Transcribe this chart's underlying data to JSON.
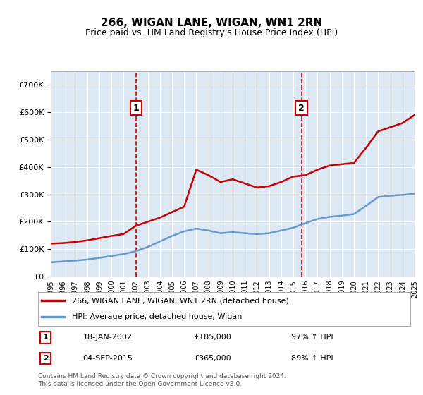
{
  "title": "266, WIGAN LANE, WIGAN, WN1 2RN",
  "subtitle": "Price paid vs. HM Land Registry's House Price Index (HPI)",
  "property_label": "266, WIGAN LANE, WIGAN, WN1 2RN (detached house)",
  "hpi_label": "HPI: Average price, detached house, Wigan",
  "annotation1_label": "1",
  "annotation1_date": "18-JAN-2002",
  "annotation1_price": "£185,000",
  "annotation1_hpi": "97% ↑ HPI",
  "annotation2_label": "2",
  "annotation2_date": "04-SEP-2015",
  "annotation2_price": "£365,000",
  "annotation2_hpi": "89% ↑ HPI",
  "footer": "Contains HM Land Registry data © Crown copyright and database right 2024.\nThis data is licensed under the Open Government Licence v3.0.",
  "property_color": "#cc0000",
  "hpi_color": "#6699cc",
  "background_color": "#dce9f5",
  "plot_bg_color": "#dce9f5",
  "annotation_box_color": "#cc0000",
  "vline_color": "#cc0000",
  "ylim": [
    0,
    750000
  ],
  "yticks": [
    0,
    100000,
    200000,
    300000,
    400000,
    500000,
    600000,
    700000
  ],
  "hpi_years": [
    1995,
    1996,
    1997,
    1998,
    1999,
    2000,
    2001,
    2002,
    2003,
    2004,
    2005,
    2006,
    2007,
    2008,
    2009,
    2010,
    2011,
    2012,
    2013,
    2014,
    2015,
    2016,
    2017,
    2018,
    2019,
    2020,
    2021,
    2022,
    2023,
    2024,
    2025
  ],
  "hpi_values": [
    52000,
    55000,
    58000,
    62000,
    68000,
    75000,
    82000,
    92000,
    108000,
    128000,
    148000,
    165000,
    175000,
    168000,
    158000,
    162000,
    158000,
    155000,
    158000,
    168000,
    178000,
    195000,
    210000,
    218000,
    222000,
    228000,
    258000,
    290000,
    295000,
    298000,
    302000
  ],
  "prop_years": [
    1995,
    1996,
    1997,
    1998,
    1999,
    2000,
    2001,
    2002,
    2003,
    2004,
    2005,
    2006,
    2007,
    2008,
    2009,
    2010,
    2011,
    2012,
    2013,
    2014,
    2015,
    2016,
    2017,
    2018,
    2019,
    2020,
    2021,
    2022,
    2023,
    2024,
    2025
  ],
  "prop_values": [
    120000,
    122000,
    126000,
    132000,
    140000,
    148000,
    155000,
    185000,
    200000,
    215000,
    235000,
    255000,
    390000,
    370000,
    345000,
    355000,
    340000,
    325000,
    330000,
    345000,
    365000,
    370000,
    390000,
    405000,
    410000,
    415000,
    470000,
    530000,
    545000,
    560000,
    590000
  ],
  "sale1_x": 2002.05,
  "sale1_y": 185000,
  "sale2_x": 2015.67,
  "sale2_y": 365000,
  "xmin": 1995,
  "xmax": 2025
}
